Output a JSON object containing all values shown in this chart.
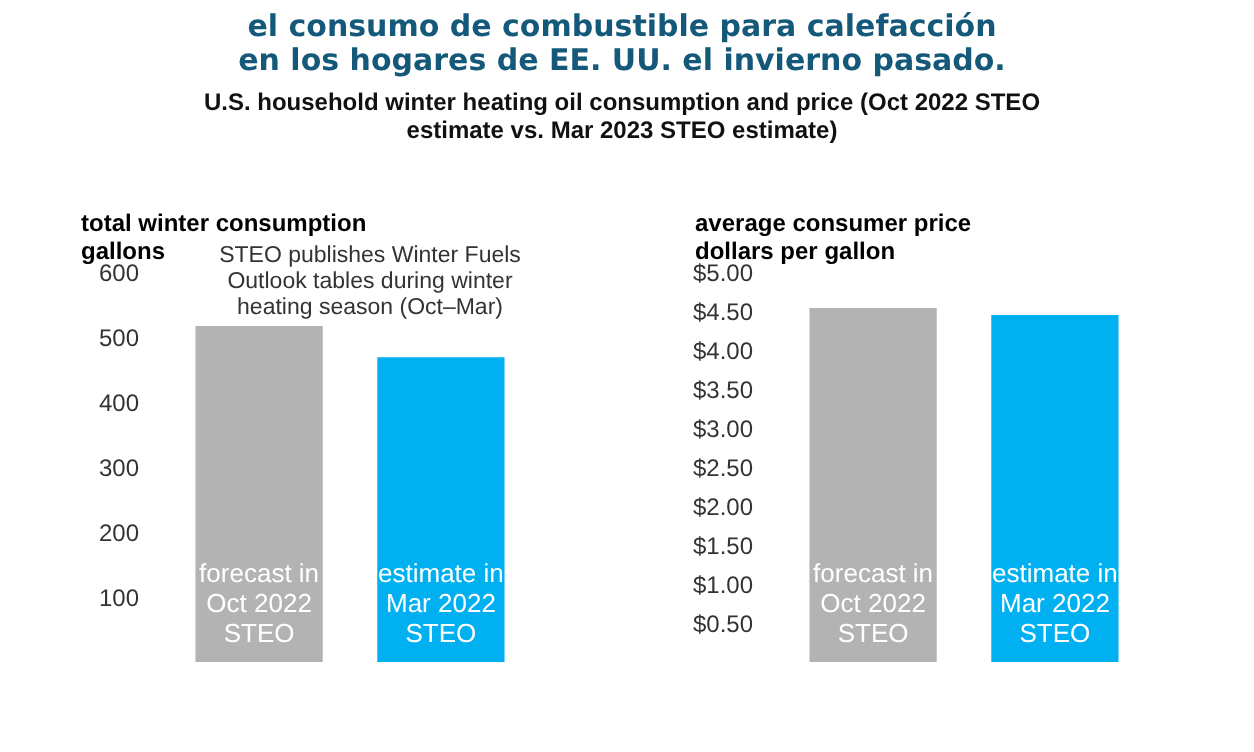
{
  "chart_data": [
    {
      "type": "bar",
      "title": "el consumo de combustible para calefacción\nen los hogares de EE. UU. el invierno pasado.",
      "subtitle": "U.S. household winter heating oil consumption and price (Oct 2022 STEO estimate vs. Mar 2023 STEO estimate)",
      "ylabel": "total winter consumption\ngallons",
      "categories": [
        "forecast in Oct 2022 STEO",
        "estimate in Mar 2022 STEO"
      ],
      "values": [
        517,
        469
      ],
      "colors": [
        "#b3b3b3",
        "#00b0f0"
      ],
      "ylim": [
        0,
        600
      ],
      "yticks": [
        100,
        200,
        300,
        400,
        500,
        600
      ],
      "grid": false,
      "annotations": [
        "STEO publishes Winter Fuels Outlook tables during winter heating season (Oct–Mar)"
      ]
    },
    {
      "type": "bar",
      "ylabel": "average consumer price\ndollars per gallon",
      "categories": [
        "forecast in Oct 2022 STEO",
        "estimate in Mar 2022 STEO"
      ],
      "values": [
        4.54,
        4.45
      ],
      "colors": [
        "#b3b3b3",
        "#00b0f0"
      ],
      "ylim": [
        0,
        5
      ],
      "yticks": [
        {
          "value": 0.5,
          "label": "$0.50"
        },
        {
          "value": 1,
          "label": "$1.00"
        },
        {
          "value": 1.5,
          "label": "$1.50"
        },
        {
          "value": 2,
          "label": "$2.00"
        },
        {
          "value": 2.5,
          "label": "$2.50"
        },
        {
          "value": 3,
          "label": "$3.00"
        },
        {
          "value": 3.5,
          "label": "$3.50"
        },
        {
          "value": 4,
          "label": "$4.00"
        },
        {
          "value": 4.5,
          "label": "$4.50"
        },
        {
          "value": 5,
          "label": "$5.00"
        }
      ],
      "grid": false
    }
  ]
}
